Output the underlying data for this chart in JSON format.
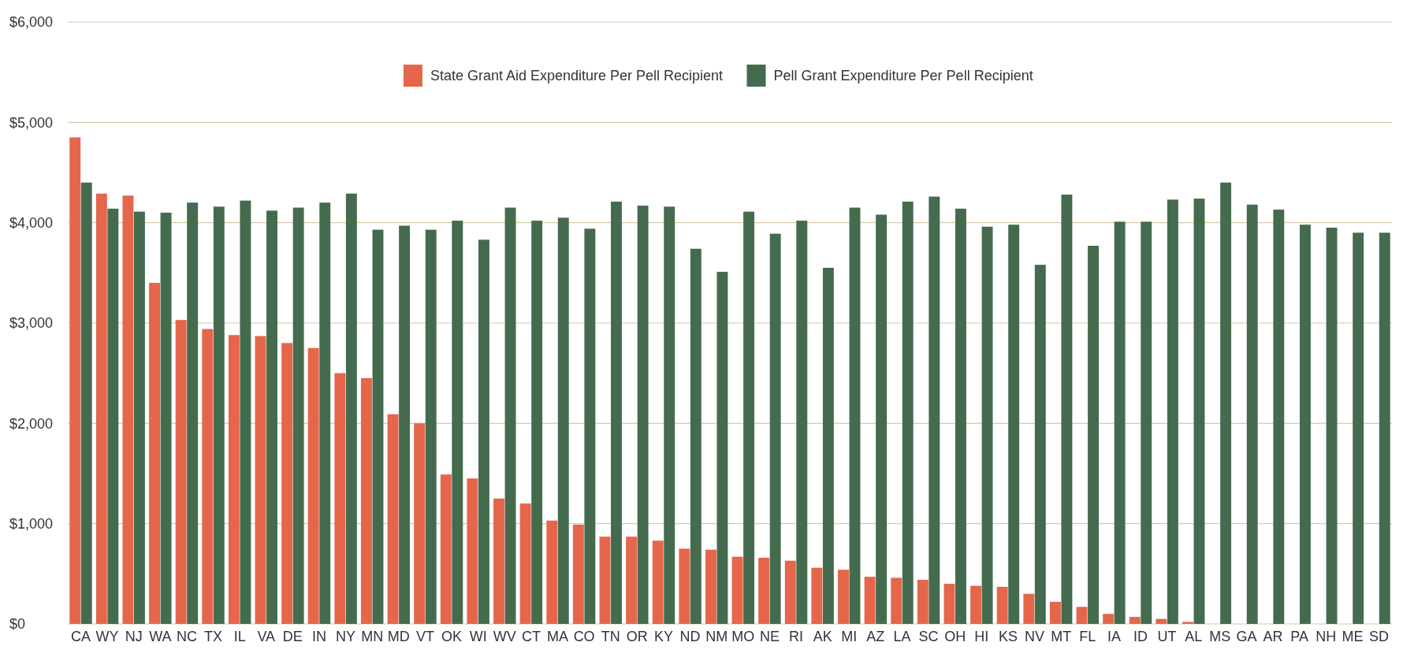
{
  "chart_data": {
    "type": "bar",
    "categories": [
      "CA",
      "WY",
      "NJ",
      "WA",
      "NC",
      "TX",
      "IL",
      "VA",
      "DE",
      "IN",
      "NY",
      "MN",
      "MD",
      "VT",
      "OK",
      "WI",
      "WV",
      "CT",
      "MA",
      "CO",
      "TN",
      "OR",
      "KY",
      "ND",
      "NM",
      "MO",
      "NE",
      "RI",
      "AK",
      "MI",
      "AZ",
      "LA",
      "SC",
      "OH",
      "HI",
      "KS",
      "NV",
      "MT",
      "FL",
      "IA",
      "ID",
      "UT",
      "AL",
      "MS",
      "GA",
      "AR",
      "PA",
      "NH",
      "ME",
      "SD"
    ],
    "series": [
      {
        "name": "State Grant Aid Expenditure Per Pell Recipient",
        "color": "#e5664a",
        "values": [
          4850,
          4290,
          4270,
          3400,
          3030,
          2940,
          2880,
          2870,
          2800,
          2750,
          2500,
          2450,
          2090,
          2000,
          1490,
          1450,
          1250,
          1200,
          1030,
          990,
          870,
          870,
          830,
          750,
          740,
          670,
          660,
          630,
          560,
          540,
          470,
          460,
          440,
          400,
          380,
          370,
          300,
          220,
          170,
          100,
          70,
          50,
          20,
          null,
          null,
          null,
          null,
          null,
          null,
          null
        ]
      },
      {
        "name": "Pell Grant Expenditure Per Pell Recipient",
        "color": "#456b4f",
        "values": [
          4400,
          4140,
          4110,
          4100,
          4200,
          4160,
          4220,
          4120,
          4150,
          4200,
          4290,
          3930,
          3970,
          3930,
          4020,
          3830,
          4150,
          4020,
          4050,
          3940,
          4210,
          4170,
          4160,
          3740,
          3510,
          4110,
          3890,
          4020,
          3550,
          4150,
          4080,
          4210,
          4260,
          4140,
          3960,
          3980,
          3580,
          4280,
          3770,
          4010,
          4010,
          4230,
          4240,
          4400,
          4180,
          4130,
          3980,
          3950,
          3900,
          3900
        ]
      }
    ],
    "ylim": [
      0,
      6000
    ],
    "yticks": [
      {
        "value": 0,
        "label": "$0"
      },
      {
        "value": 1000,
        "label": "$1,000"
      },
      {
        "value": 2000,
        "label": "$2,000"
      },
      {
        "value": 3000,
        "label": "$3,000"
      },
      {
        "value": 4000,
        "label": "$4,000"
      },
      {
        "value": 5000,
        "label": "$5,000"
      },
      {
        "value": 6000,
        "label": "$6,000"
      }
    ],
    "grid": "y",
    "legend": "top"
  }
}
